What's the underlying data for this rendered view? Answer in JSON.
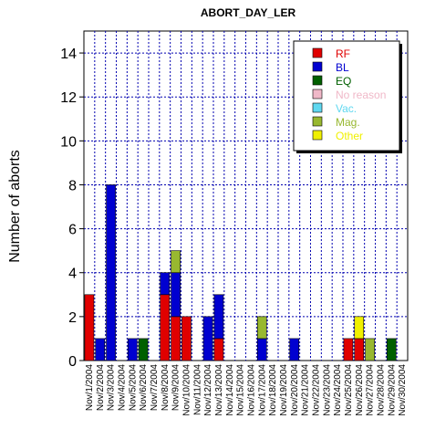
{
  "chart_data": {
    "type": "bar",
    "stacked": true,
    "title": "ABORT_DAY_LER",
    "xlabel": "",
    "ylabel": "Number of aborts",
    "ylim": [
      0,
      15
    ],
    "yticks": [
      0,
      2,
      4,
      6,
      8,
      10,
      12,
      14
    ],
    "grid": true,
    "legend_position": "top-right",
    "categories": [
      "Nov/1/2004",
      "Nov/2/2004",
      "Nov/3/2004",
      "Nov/4/2004",
      "Nov/5/2004",
      "Nov/6/2004",
      "Nov/7/2004",
      "Nov/8/2004",
      "Nov/9/2004",
      "Nov/10/2004",
      "Nov/11/2004",
      "Nov/12/2004",
      "Nov/13/2004",
      "Nov/14/2004",
      "Nov/15/2004",
      "Nov/16/2004",
      "Nov/17/2004",
      "Nov/18/2004",
      "Nov/19/2004",
      "Nov/20/2004",
      "Nov/21/2004",
      "Nov/22/2004",
      "Nov/23/2004",
      "Nov/24/2004",
      "Nov/25/2004",
      "Nov/26/2004",
      "Nov/27/2004",
      "Nov/28/2004",
      "Nov/29/2004",
      "Nov/30/2004"
    ],
    "series": [
      {
        "name": "RF",
        "color": "#e00000",
        "values": [
          3,
          0,
          0,
          0,
          0,
          0,
          0,
          3,
          2,
          2,
          0,
          0,
          1,
          0,
          0,
          0,
          0,
          0,
          0,
          0,
          0,
          0,
          0,
          0,
          1,
          1,
          0,
          0,
          0,
          0
        ]
      },
      {
        "name": "BL",
        "color": "#0000d0",
        "values": [
          0,
          1,
          8,
          0,
          1,
          0,
          0,
          1,
          2,
          0,
          0,
          2,
          2,
          0,
          0,
          0,
          1,
          0,
          0,
          1,
          0,
          0,
          0,
          0,
          0,
          0,
          0,
          0,
          0,
          0
        ]
      },
      {
        "name": "EQ",
        "color": "#006000",
        "values": [
          0,
          0,
          0,
          0,
          0,
          1,
          0,
          0,
          0,
          0,
          0,
          0,
          0,
          0,
          0,
          0,
          0,
          0,
          0,
          0,
          0,
          0,
          0,
          0,
          0,
          0,
          0,
          0,
          1,
          0
        ]
      },
      {
        "name": "No reason",
        "color": "#f0b8c8",
        "values": [
          0,
          0,
          0,
          0,
          0,
          0,
          0,
          0,
          0,
          0,
          0,
          0,
          0,
          0,
          0,
          0,
          0,
          0,
          0,
          0,
          0,
          0,
          0,
          0,
          0,
          0,
          0,
          0,
          0,
          0
        ]
      },
      {
        "name": "Vac.",
        "color": "#60d8f0",
        "values": [
          0,
          0,
          0,
          0,
          0,
          0,
          0,
          0,
          0,
          0,
          0,
          0,
          0,
          0,
          0,
          0,
          0,
          0,
          0,
          0,
          0,
          0,
          0,
          0,
          0,
          0,
          0,
          0,
          0,
          0
        ]
      },
      {
        "name": "Mag.",
        "color": "#98b830",
        "values": [
          0,
          0,
          0,
          0,
          0,
          0,
          0,
          0,
          1,
          0,
          0,
          0,
          0,
          0,
          0,
          0,
          1,
          0,
          0,
          0,
          0,
          0,
          0,
          0,
          0,
          0,
          1,
          0,
          0,
          0
        ]
      },
      {
        "name": "Other",
        "color": "#f0f000",
        "values": [
          0,
          0,
          0,
          0,
          0,
          0,
          0,
          0,
          0,
          0,
          0,
          0,
          0,
          0,
          0,
          0,
          0,
          0,
          0,
          0,
          0,
          0,
          0,
          0,
          0,
          1,
          0,
          0,
          0,
          0
        ]
      }
    ]
  }
}
